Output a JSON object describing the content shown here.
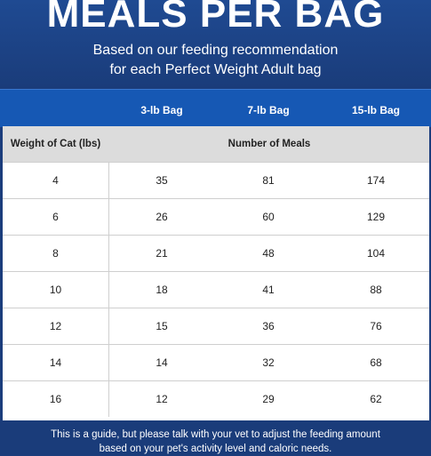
{
  "header": {
    "title": "MEALS PER BAG",
    "subtitle_line1": "Based on our feeding recommendation",
    "subtitle_line2": "for each Perfect Weight Adult bag"
  },
  "columns": {
    "bag1": "3-lb Bag",
    "bag2": "7-lb Bag",
    "bag3": "15-lb Bag"
  },
  "subheader": {
    "weight": "Weight of Cat (lbs)",
    "meals": "Number of Meals"
  },
  "rows": [
    {
      "weight": "4",
      "bag1": "35",
      "bag2": "81",
      "bag3": "174"
    },
    {
      "weight": "6",
      "bag1": "26",
      "bag2": "60",
      "bag3": "129"
    },
    {
      "weight": "8",
      "bag1": "21",
      "bag2": "48",
      "bag3": "104"
    },
    {
      "weight": "10",
      "bag1": "18",
      "bag2": "41",
      "bag3": "88"
    },
    {
      "weight": "12",
      "bag1": "15",
      "bag2": "36",
      "bag3": "76"
    },
    {
      "weight": "14",
      "bag1": "14",
      "bag2": "32",
      "bag3": "68"
    },
    {
      "weight": "16",
      "bag1": "12",
      "bag2": "29",
      "bag3": "62"
    }
  ],
  "footer": {
    "line1": "This is a guide, but please talk with your vet to adjust the feeding amount",
    "line2": "based on your pet's activity level and caloric needs."
  },
  "colors": {
    "header_bg": "#1f4a92",
    "column_bar_bg": "#1658b4",
    "subheader_bg": "#dcdcdc",
    "footer_bg": "#1a3c7a"
  }
}
